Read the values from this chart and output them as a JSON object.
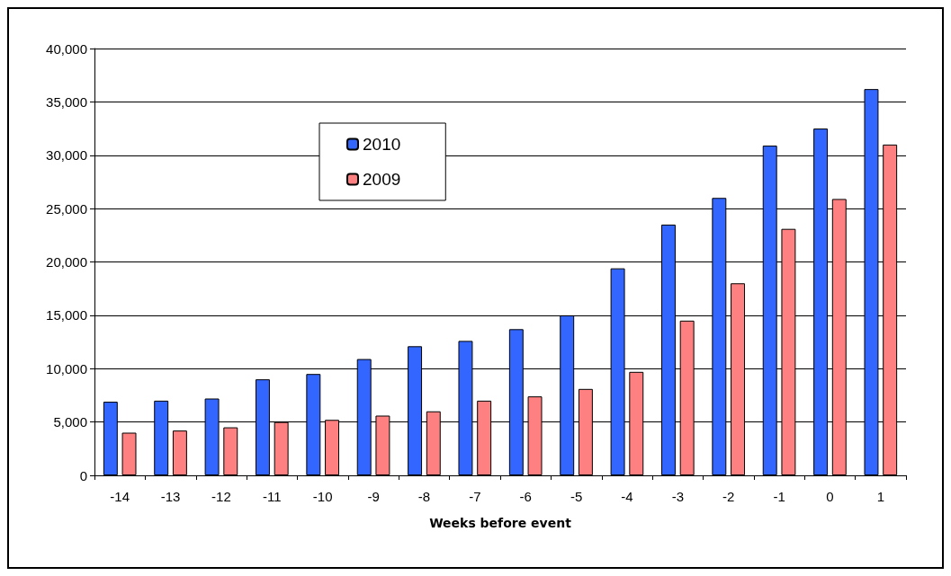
{
  "chart_data": {
    "type": "bar",
    "xlabel": "Weeks before event",
    "categories": [
      "-14",
      "-13",
      "-12",
      "-11",
      "-10",
      "-9",
      "-8",
      "-7",
      "-6",
      "-5",
      "-4",
      "-3",
      "-2",
      "-1",
      "0",
      "1"
    ],
    "series": [
      {
        "name": "2010",
        "color": "#3366ff",
        "values": [
          6900,
          7000,
          7200,
          9000,
          9500,
          10900,
          12100,
          12600,
          13700,
          15000,
          19400,
          23500,
          26000,
          30900,
          32500,
          36200
        ]
      },
      {
        "name": "2009",
        "color": "#ff8080",
        "values": [
          4000,
          4200,
          4500,
          5000,
          5200,
          5600,
          6000,
          7000,
          7400,
          8100,
          9700,
          14500,
          18000,
          23100,
          25900,
          31000
        ]
      }
    ],
    "ylim": [
      0,
      40000
    ],
    "yticks": [
      0,
      {
        "value": 5000,
        "label": "5,000"
      },
      {
        "value": 10000,
        "label": "10,000"
      },
      {
        "value": 15000,
        "label": "15,000"
      },
      {
        "value": 20000,
        "label": "20,000"
      },
      {
        "value": 25000,
        "label": "25,000"
      },
      {
        "value": 30000,
        "label": "30,000"
      },
      {
        "value": 35000,
        "label": "35,000"
      },
      {
        "value": 40000,
        "label": "40,000"
      }
    ],
    "grid": "y",
    "legend": "top left"
  }
}
